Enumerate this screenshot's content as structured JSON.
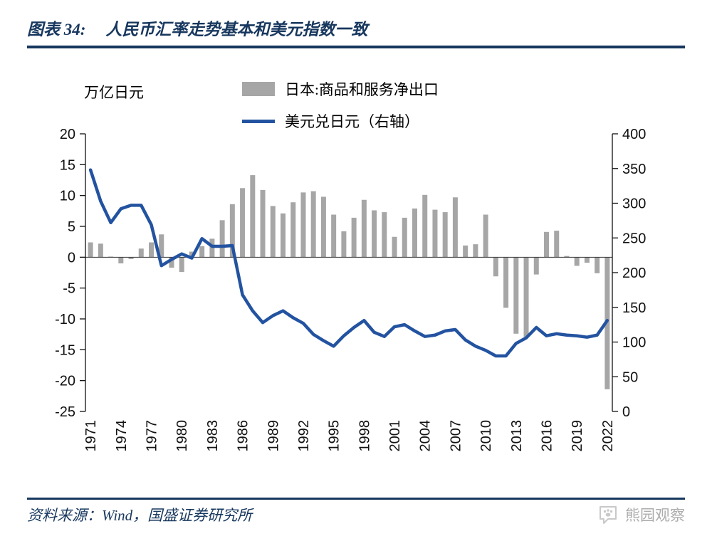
{
  "header": {
    "figure_label": "图表 34:",
    "title": "人民币汇率走势基本和美元指数一致"
  },
  "footer": {
    "source": "资料来源：Wind，国盛证券研究所",
    "watermark": "熊园观察"
  },
  "colors": {
    "navy": "#17375E",
    "line_blue": "#2353A0",
    "bar_gray": "#A6A6A6",
    "axis_text": "#111111",
    "watermark_gray": "#C9C9C9"
  },
  "chart_data": {
    "type": "combo-bar-line",
    "unit_label": "万亿日元",
    "legend_position": "top",
    "grid": false,
    "legend": [
      {
        "type": "bar",
        "label": "日本:商品和服务净出口",
        "color": "#A6A6A6"
      },
      {
        "type": "line",
        "label": "美元兑日元（右轴）",
        "color": "#2353A0"
      }
    ],
    "x": [
      1971,
      1972,
      1973,
      1974,
      1975,
      1976,
      1977,
      1978,
      1979,
      1980,
      1981,
      1982,
      1983,
      1984,
      1985,
      1986,
      1987,
      1988,
      1989,
      1990,
      1991,
      1992,
      1993,
      1994,
      1995,
      1996,
      1997,
      1998,
      1999,
      2000,
      2001,
      2002,
      2003,
      2004,
      2005,
      2006,
      2007,
      2008,
      2009,
      2010,
      2011,
      2012,
      2013,
      2014,
      2015,
      2016,
      2017,
      2018,
      2019,
      2020,
      2021,
      2022
    ],
    "x_tick_labels": [
      1971,
      1974,
      1977,
      1980,
      1983,
      1986,
      1989,
      1992,
      1995,
      1998,
      2001,
      2004,
      2007,
      2010,
      2013,
      2016,
      2019,
      2022
    ],
    "left_axis": {
      "min": -25,
      "max": 20,
      "ticks": [
        20,
        15,
        10,
        5,
        0,
        -5,
        -10,
        -15,
        -20,
        -25
      ]
    },
    "right_axis": {
      "min": 0,
      "max": 400,
      "ticks": [
        400,
        350,
        300,
        250,
        200,
        150,
        100,
        50,
        0
      ]
    },
    "series": [
      {
        "name": "日本:商品和服务净出口",
        "type": "bar",
        "axis": "left",
        "color": "#A6A6A6",
        "values": [
          2.4,
          2.2,
          0.1,
          -1.0,
          -0.3,
          1.4,
          2.4,
          3.7,
          -1.7,
          -2.4,
          0.9,
          1.8,
          3.0,
          6.0,
          8.6,
          11.2,
          13.3,
          10.9,
          8.3,
          7.1,
          8.9,
          10.5,
          10.7,
          9.8,
          6.9,
          4.2,
          6.4,
          9.3,
          7.6,
          7.3,
          3.3,
          6.4,
          7.9,
          10.1,
          7.7,
          7.3,
          9.7,
          1.9,
          2.1,
          6.9,
          -3.1,
          -8.2,
          -12.4,
          -12.9,
          -2.8,
          4.1,
          4.3,
          0.2,
          -1.4,
          -0.9,
          -2.6,
          -21.4
        ]
      },
      {
        "name": "美元兑日元（右轴）",
        "type": "line",
        "axis": "right",
        "color": "#2353A0",
        "values": [
          348,
          303,
          272,
          292,
          297,
          297,
          269,
          210,
          219,
          227,
          221,
          249,
          238,
          238,
          239,
          168,
          145,
          128,
          138,
          145,
          135,
          127,
          111,
          102,
          94,
          109,
          121,
          131,
          114,
          108,
          122,
          125,
          116,
          108,
          110,
          116,
          118,
          103,
          94,
          88,
          80,
          80,
          98,
          106,
          121,
          109,
          112,
          110,
          109,
          107,
          110,
          131
        ]
      }
    ]
  }
}
